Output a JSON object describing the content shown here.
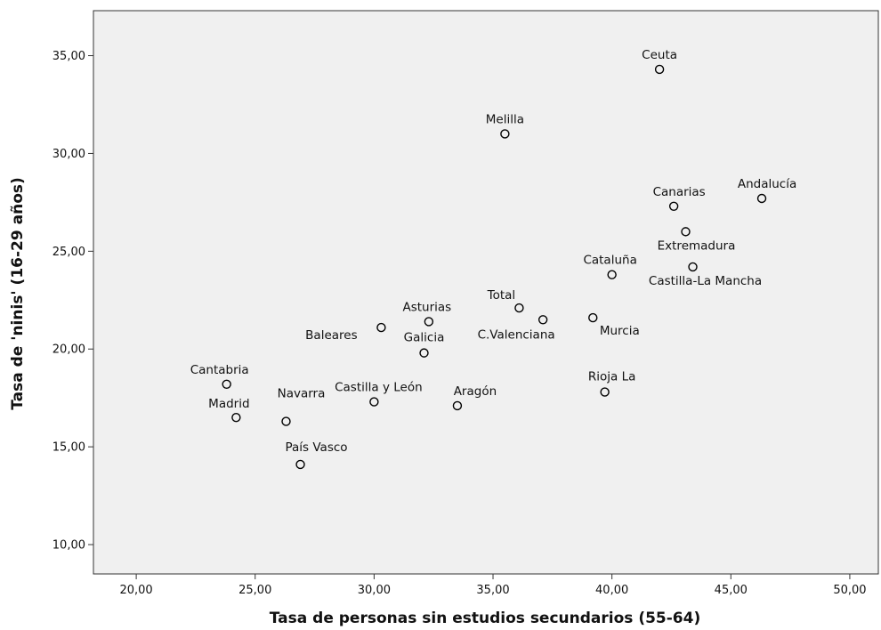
{
  "chart_data": {
    "type": "scatter",
    "title": "",
    "xlabel": "Tasa de personas sin estudios secundarios (55-64)",
    "ylabel": "Tasa de 'ninis' (16-29 años)",
    "xlim": [
      18.2,
      51.2
    ],
    "ylim": [
      8.5,
      37.3
    ],
    "x_ticks": [
      20,
      25,
      30,
      35,
      40,
      45,
      50
    ],
    "x_tick_labels": [
      "20,00",
      "25,00",
      "30,00",
      "35,00",
      "40,00",
      "45,00",
      "50,00"
    ],
    "y_ticks": [
      10,
      15,
      20,
      25,
      30,
      35
    ],
    "y_tick_labels": [
      "10,00",
      "15,00",
      "20,00",
      "25,00",
      "30,00",
      "35,00"
    ],
    "grid": false,
    "legend": "none",
    "background_color": "#f0f0f0",
    "marker_color": "#000000",
    "points": [
      {
        "label": "Ceuta",
        "x": 42.0,
        "y": 34.3
      },
      {
        "label": "Melilla",
        "x": 35.5,
        "y": 31.0
      },
      {
        "label": "Canarias",
        "x": 42.6,
        "y": 27.3
      },
      {
        "label": "Andalucía",
        "x": 46.3,
        "y": 27.7
      },
      {
        "label": "Extremadura",
        "x": 43.1,
        "y": 26.0
      },
      {
        "label": "Cataluña",
        "x": 40.0,
        "y": 23.8
      },
      {
        "label": "Castilla-La Mancha",
        "x": 43.4,
        "y": 24.2
      },
      {
        "label": "Total",
        "x": 36.1,
        "y": 22.1
      },
      {
        "label": "Asturias",
        "x": 32.3,
        "y": 21.4
      },
      {
        "label": "C.Valenciana",
        "x": 37.1,
        "y": 21.5
      },
      {
        "label": "Murcia",
        "x": 39.2,
        "y": 21.6
      },
      {
        "label": "Baleares",
        "x": 30.3,
        "y": 21.1
      },
      {
        "label": "Galicia",
        "x": 32.1,
        "y": 19.8
      },
      {
        "label": "Cantabria",
        "x": 23.8,
        "y": 18.2
      },
      {
        "label": "Rioja La",
        "x": 39.7,
        "y": 17.8
      },
      {
        "label": "Castilla y León",
        "x": 30.0,
        "y": 17.3
      },
      {
        "label": "Aragón",
        "x": 33.5,
        "y": 17.1
      },
      {
        "label": "Madrid",
        "x": 24.2,
        "y": 16.5
      },
      {
        "label": "Navarra",
        "x": 26.3,
        "y": 16.3
      },
      {
        "label": "País Vasco",
        "x": 26.9,
        "y": 14.1
      }
    ]
  }
}
